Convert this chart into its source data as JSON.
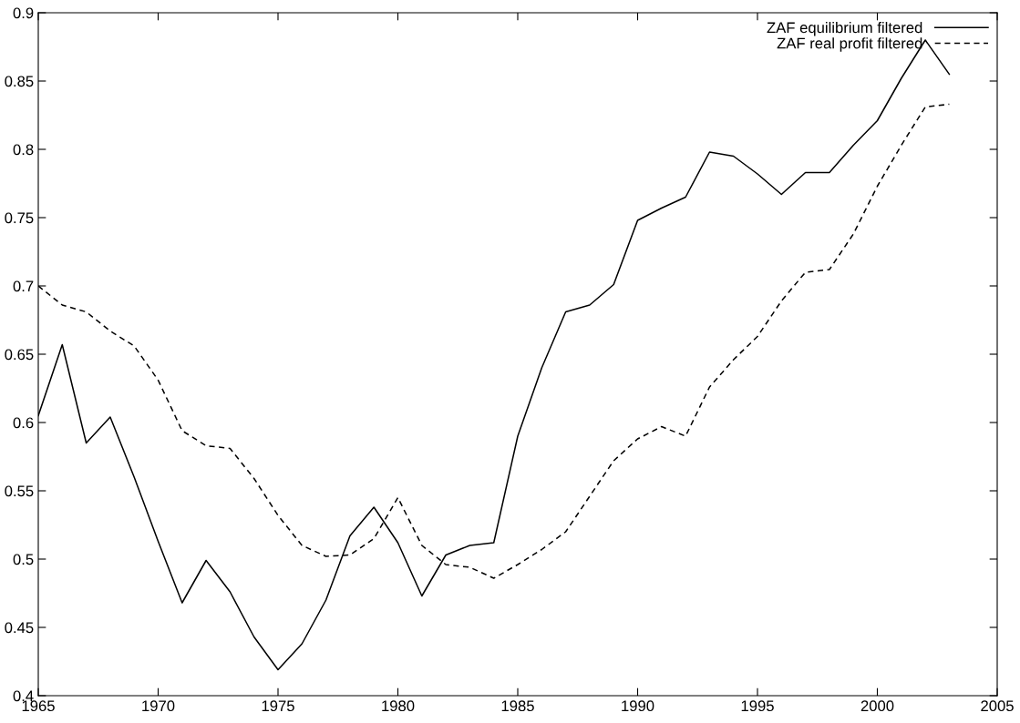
{
  "chart_data": {
    "type": "line",
    "x": [
      1965,
      1966,
      1967,
      1968,
      1969,
      1970,
      1971,
      1972,
      1973,
      1974,
      1975,
      1976,
      1977,
      1978,
      1979,
      1980,
      1981,
      1982,
      1983,
      1984,
      1985,
      1986,
      1987,
      1988,
      1989,
      1990,
      1991,
      1992,
      1993,
      1994,
      1995,
      1996,
      1997,
      1998,
      1999,
      2000,
      2001,
      2002,
      2003
    ],
    "series": [
      {
        "name": "ZAF equilibrium filtered",
        "color": "#000000",
        "line_style": "solid",
        "values": [
          0.605,
          0.657,
          0.585,
          0.604,
          0.56,
          0.513,
          0.468,
          0.499,
          0.476,
          0.443,
          0.419,
          0.438,
          0.47,
          0.517,
          0.538,
          0.512,
          0.473,
          0.503,
          0.51,
          0.512,
          0.59,
          0.64,
          0.681,
          0.686,
          0.701,
          0.748,
          0.757,
          0.765,
          0.798,
          0.795,
          0.782,
          0.767,
          0.783,
          0.783,
          0.803,
          0.821,
          0.852,
          0.88,
          0.855
        ]
      },
      {
        "name": "ZAF real profit filtered",
        "color": "#000000",
        "line_style": "dashed",
        "values": [
          0.7,
          0.686,
          0.681,
          0.667,
          0.656,
          0.631,
          0.594,
          0.583,
          0.581,
          0.559,
          0.532,
          0.51,
          0.502,
          0.503,
          0.515,
          0.545,
          0.51,
          0.496,
          0.494,
          0.486,
          0.496,
          0.507,
          0.52,
          0.546,
          0.572,
          0.588,
          0.597,
          0.59,
          0.626,
          0.646,
          0.663,
          0.689,
          0.71,
          0.712,
          0.738,
          0.773,
          0.803,
          0.831,
          0.833
        ]
      }
    ],
    "xlim": [
      1965,
      2005
    ],
    "xticks": [
      1965,
      1970,
      1975,
      1980,
      1985,
      1990,
      1995,
      2000,
      2005
    ],
    "ylim": [
      0.4,
      0.9
    ],
    "yticks": [
      0.4,
      0.45,
      0.5,
      0.55,
      0.6,
      0.65,
      0.7,
      0.75,
      0.8,
      0.85,
      0.9
    ],
    "grid": false,
    "legend": "top right",
    "marker": "none"
  }
}
